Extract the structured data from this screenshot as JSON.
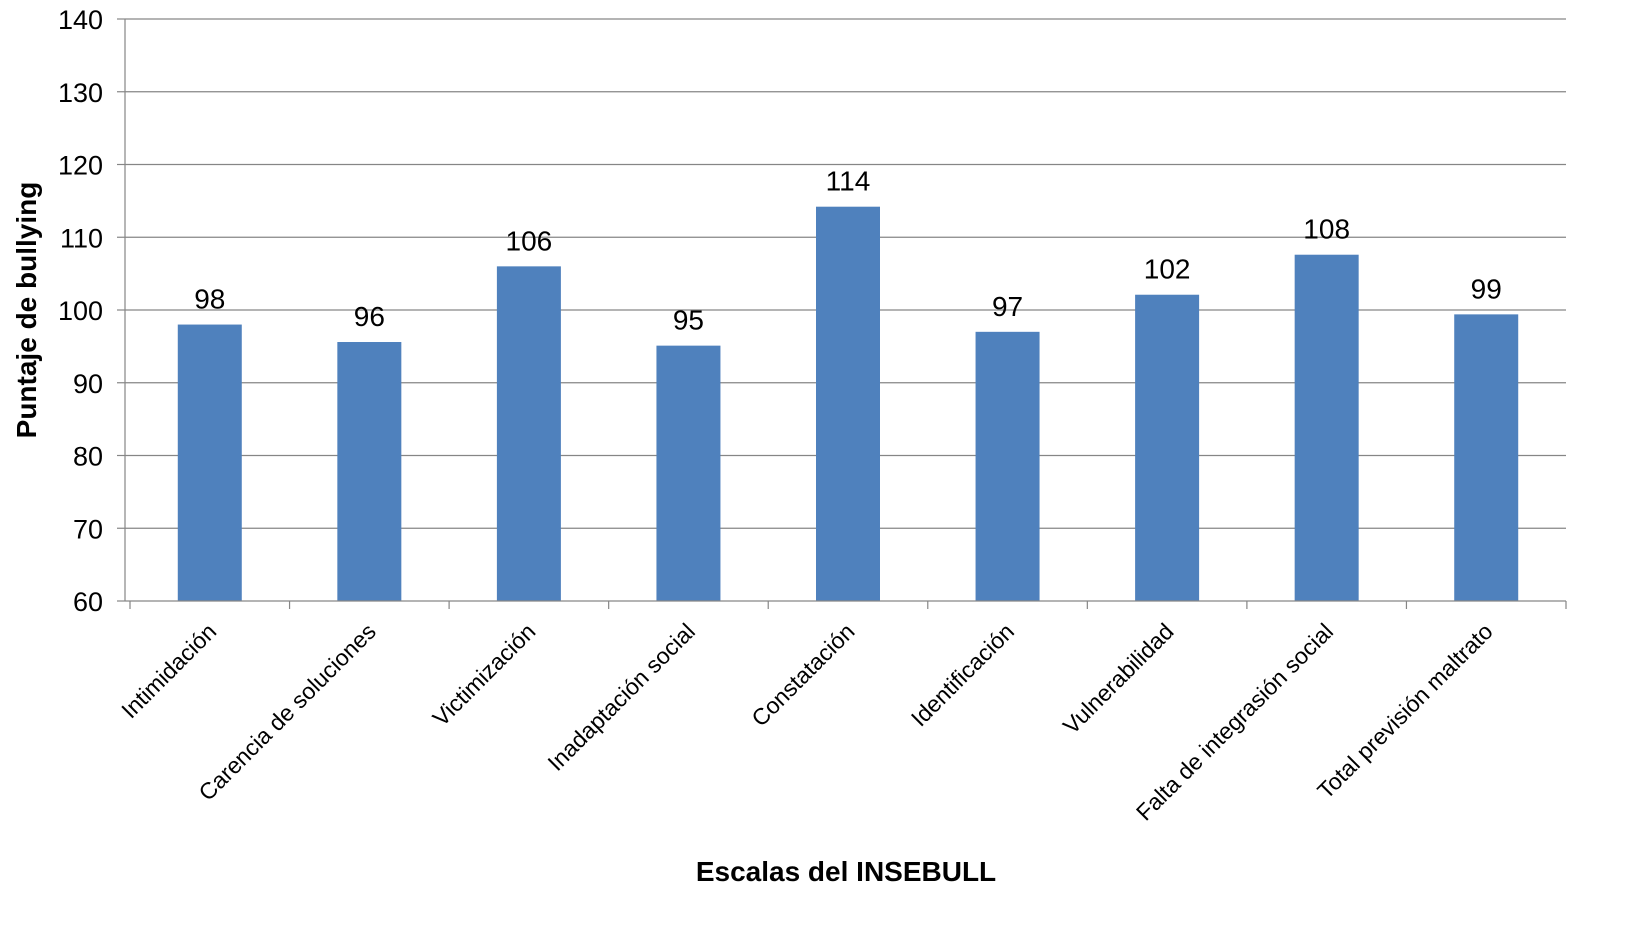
{
  "chart_data": {
    "type": "bar",
    "xlabel": "Escalas del INSEBULL",
    "ylabel": "Puntaje de bullying",
    "ylim": [
      60,
      140
    ],
    "yticks": [
      60,
      70,
      80,
      90,
      100,
      110,
      120,
      130,
      140
    ],
    "grid": true,
    "categories": [
      "Intimidación",
      "Carencia de soluciones",
      "Victimización",
      "Inadaptación social",
      "Constatación",
      "Identificación",
      "Vulnerabilidad",
      "Falta de integrasión social",
      "Total previsión  maltrato"
    ],
    "values": [
      98,
      95.6,
      106,
      95.1,
      114.2,
      97,
      102.1,
      107.6,
      99.4
    ],
    "data_labels": [
      "98",
      "96",
      "106",
      "95",
      "114",
      "97",
      "102",
      "108",
      "99"
    ],
    "bar_color": "#4F81BD",
    "grid_color": "#868686",
    "axis_color": "#868686"
  }
}
